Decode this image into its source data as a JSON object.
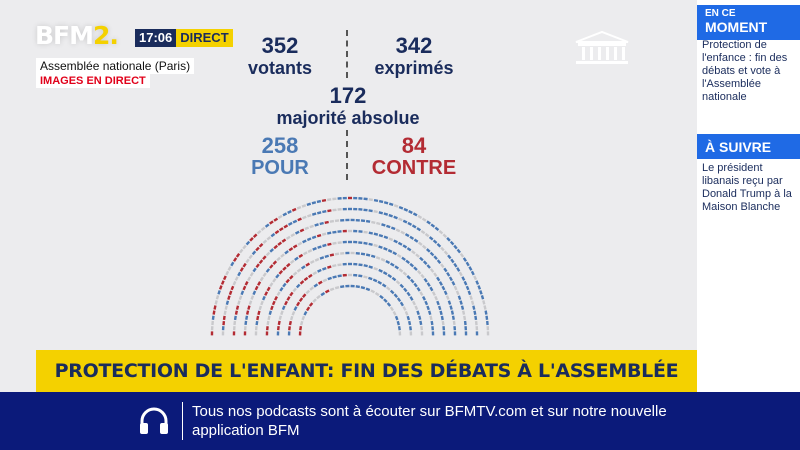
{
  "brand": {
    "logo_main": "BFM",
    "logo_accent": "2.",
    "time": "17:06",
    "live_label": "DIRECT"
  },
  "location": "Assemblée nationale (Paris)",
  "live_tag": "IMAGES EN DIRECT",
  "vote": {
    "votants": {
      "value": "352",
      "label": "votants"
    },
    "exprimes": {
      "value": "342",
      "label": "exprimés"
    },
    "majorite": {
      "value": "172",
      "label": "majorité absolue"
    },
    "pour": {
      "value": "258",
      "label": "POUR"
    },
    "contre": {
      "value": "84",
      "label": "CONTRE"
    }
  },
  "colors": {
    "pour": "#4a79b4",
    "contre": "#b32b33",
    "neutral": "#c9c9cc",
    "accent": "#f4d100",
    "navy": "#1a2c5c"
  },
  "headline": "PROTECTION DE L'ENFANT: FIN DES DÉBATS À L'ASSEMBLÉE",
  "sidebar": {
    "section1_small": "EN CE",
    "section1_big": "MOMENT",
    "section1_text": "Protection de l'enfance : fin des débats et vote à l'Assemblée nationale",
    "section2_big": "À SUIVRE",
    "section2_text": "Le président libanais reçu par Donald Trump à la Maison Blanche"
  },
  "footer": {
    "icon": "headphones-icon",
    "text": "Tous nos podcasts sont à écouter sur BFMTV.com et sur notre nouvelle application BFM"
  }
}
